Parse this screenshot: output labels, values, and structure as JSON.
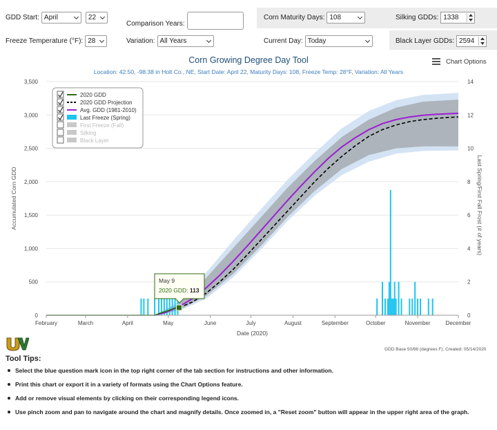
{
  "controls": {
    "gdd_start_label": "GDD Start:",
    "gdd_start_month": "April",
    "gdd_start_day": "22",
    "comparison_years_label": "Comparison Years:",
    "corn_maturity_label": "Corn Maturity Days:",
    "corn_maturity_value": "108",
    "silking_label": "Silking GDDs:",
    "silking_value": "1338",
    "freeze_temp_label": "Freeze Temperature (°F):",
    "freeze_temp_value": "28",
    "variation_label": "Variation:",
    "variation_value": "All Years",
    "current_day_label": "Current Day:",
    "current_day_value": "Today",
    "black_layer_label": "Black Layer GDDs:",
    "black_layer_value": "2594"
  },
  "chart_options_label": "Chart Options",
  "footnote": "GDD Base 50/86 (degrees F); Created: 05/14/2020",
  "tooltip": {
    "date": "May 9",
    "series": "2020 GDD",
    "sep": ": ",
    "value": "113"
  },
  "tool_tips": {
    "heading": "Tool Tips:",
    "items": [
      "Select the blue question mark icon in the top right corner of the tab section for instructions and other information.",
      "Print this chart or export it in a variety of formats using the Chart Options feature.",
      "Add or remove visual elements by clicking on their corresponding legend icons.",
      "Use pinch zoom and pan to navigate around the chart and magnify details. Once zoomed in, a \"Reset zoom\" button will appear in the upper right area of the graph."
    ]
  },
  "chart_data": {
    "type": "line",
    "title": "Corn Growing Degree Day Tool",
    "subtitle": "Location: 42.50, -98.38 in Holt Co., NE, Start Date: April 22, Maturity Days: 108, Freeze Temp: 28°F, Variation: All Years",
    "xlabel": "Date (2020)",
    "ylabel": "Accumulated Corn GDD",
    "y2label": "Last Spring/First Fall Frost (# of years)",
    "x_ticks": [
      "February",
      "March",
      "April",
      "May",
      "June",
      "July",
      "August",
      "September",
      "October",
      "November",
      "December"
    ],
    "x_tick_days": [
      32,
      61,
      92,
      122,
      153,
      183,
      214,
      245,
      275,
      306,
      336
    ],
    "xlim": [
      32,
      336
    ],
    "ylim": [
      0,
      3500
    ],
    "y_ticks": [
      "0",
      "500",
      "1,000",
      "1,500",
      "2,000",
      "2,500",
      "3,000",
      "3,500"
    ],
    "y2lim": [
      0,
      14
    ],
    "y2_ticks": [
      "0",
      "2",
      "4",
      "6",
      "8",
      "10",
      "12",
      "14"
    ],
    "legend_placement": "top-left",
    "legend": [
      {
        "label": "2020 GDD",
        "checked": true,
        "enabled": true,
        "color": "#2e6b12"
      },
      {
        "label": "2020 GDD Projection",
        "checked": true,
        "enabled": true,
        "color": "#000000"
      },
      {
        "label": "Avg. GDD (1981-2010)",
        "checked": true,
        "enabled": true,
        "color": "#9b1fd1"
      },
      {
        "label": "Last Freeze (Spring)",
        "checked": true,
        "enabled": true,
        "color": "#1cc4f0"
      },
      {
        "label": "First Freeze (Fall)",
        "checked": false,
        "enabled": false,
        "color": "#c8c8c8"
      },
      {
        "label": "Silking",
        "checked": false,
        "enabled": false,
        "color": "#c8c8c8"
      },
      {
        "label": "Black Layer",
        "checked": false,
        "enabled": false,
        "color": "#c8c8c8"
      }
    ],
    "series": [
      {
        "name": "2020 GDD",
        "color": "#2e6b12",
        "x": [
          32,
          112,
          116,
          120,
          124,
          126,
          130
        ],
        "y": [
          0,
          0,
          30,
          55,
          85,
          100,
          113
        ]
      },
      {
        "name": "2020 GDD Projection",
        "color": "#000000",
        "x": [
          130,
          140,
          150,
          160,
          170,
          180,
          190,
          200,
          210,
          220,
          230,
          240,
          250,
          260,
          270,
          280,
          290,
          300,
          310,
          320,
          330,
          336
        ],
        "y": [
          113,
          200,
          330,
          500,
          690,
          900,
          1120,
          1340,
          1560,
          1780,
          2000,
          2200,
          2380,
          2540,
          2680,
          2780,
          2850,
          2900,
          2930,
          2950,
          2965,
          2970
        ]
      },
      {
        "name": "Avg. GDD (1981-2010)",
        "color": "#9b1fd1",
        "x": [
          112,
          120,
          130,
          140,
          150,
          160,
          170,
          180,
          190,
          200,
          210,
          220,
          230,
          240,
          250,
          260,
          270,
          280,
          290,
          300,
          310,
          320,
          330,
          336
        ],
        "y": [
          0,
          40,
          130,
          250,
          410,
          600,
          810,
          1030,
          1260,
          1490,
          1720,
          1940,
          2150,
          2350,
          2520,
          2660,
          2780,
          2870,
          2930,
          2970,
          2995,
          3010,
          3020,
          3025
        ]
      }
    ],
    "band_outer": {
      "x": [
        112,
        130,
        150,
        170,
        190,
        210,
        230,
        250,
        270,
        290,
        310,
        336
      ],
      "lower": [
        0,
        60,
        250,
        570,
        980,
        1410,
        1790,
        2100,
        2300,
        2420,
        2460,
        2470
      ],
      "upper": [
        0,
        210,
        640,
        1120,
        1580,
        2030,
        2430,
        2800,
        3060,
        3220,
        3300,
        3330
      ]
    },
    "band_inner": {
      "x": [
        112,
        130,
        150,
        170,
        190,
        210,
        230,
        250,
        270,
        290,
        310,
        336
      ],
      "lower": [
        0,
        80,
        290,
        620,
        1030,
        1470,
        1860,
        2190,
        2400,
        2500,
        2530,
        2530
      ],
      "upper": [
        0,
        180,
        560,
        1010,
        1460,
        1910,
        2310,
        2670,
        2930,
        3110,
        3200,
        3230
      ]
    },
    "freeze_bars": {
      "color": "#1cc4f0",
      "x": [
        102,
        104,
        107,
        112,
        115,
        117,
        119,
        121,
        123,
        125,
        127,
        129,
        276,
        280,
        282,
        284,
        285,
        286,
        287,
        288,
        289,
        290,
        292,
        294,
        300,
        302,
        304,
        306,
        308,
        314,
        317
      ],
      "y": [
        1,
        1,
        1,
        1,
        1,
        1,
        1,
        1,
        1,
        1,
        1,
        1,
        1,
        2,
        1,
        1,
        2,
        7.5,
        1,
        1,
        2,
        1,
        2,
        1,
        1,
        1,
        2,
        1,
        1,
        1,
        1
      ]
    },
    "marker": {
      "x": 130,
      "y": 113,
      "color": "#2e6b12"
    }
  }
}
